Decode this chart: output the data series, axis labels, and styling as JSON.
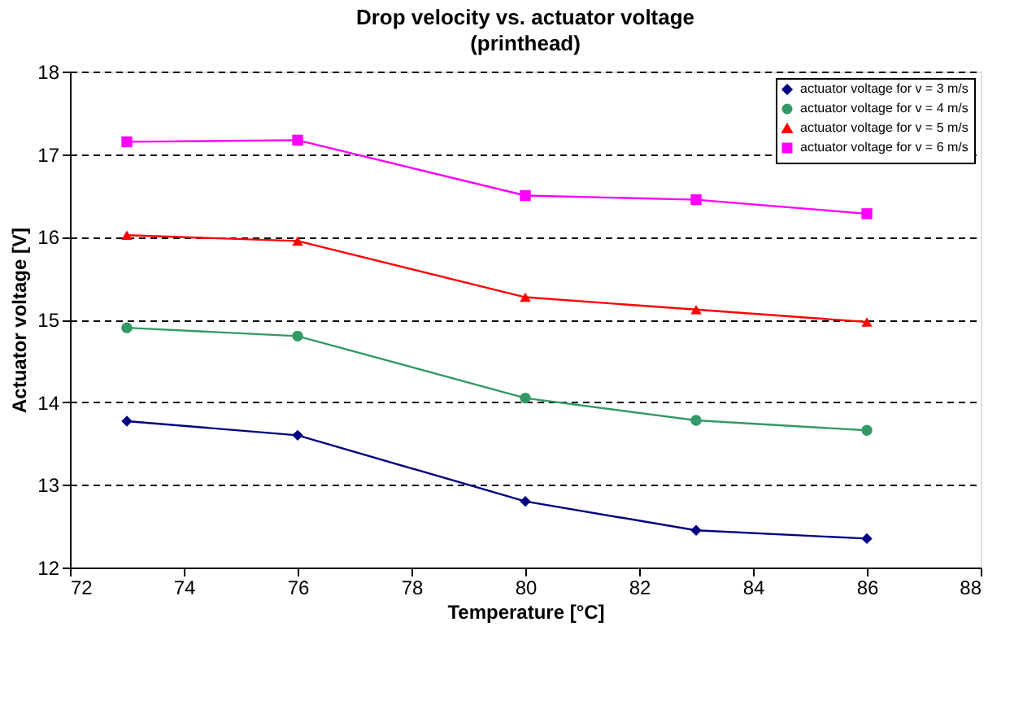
{
  "chart_data": {
    "type": "line",
    "title": "Drop velocity vs. actuator voltage",
    "subtitle": "(printhead)",
    "xlabel": "Temperature [°C]",
    "ylabel": "Actuator voltage [V]",
    "x": [
      73,
      76,
      80,
      83,
      86
    ],
    "series": [
      {
        "name": "actuator voltage for v = 3 m/s",
        "color": "#000080",
        "marker": "diamond",
        "values": [
          13.77,
          13.6,
          12.8,
          12.45,
          12.35
        ]
      },
      {
        "name": "actuator voltage for v = 4 m/s",
        "color": "#339966",
        "marker": "circle",
        "values": [
          14.9,
          14.8,
          14.05,
          13.78,
          13.66
        ]
      },
      {
        "name": "actuator voltage for v = 5 m/s",
        "color": "#ff0000",
        "marker": "triangle",
        "values": [
          16.02,
          15.95,
          15.27,
          15.12,
          14.97
        ]
      },
      {
        "name": "actuator voltage for v = 6 m/s",
        "color": "#ff00ff",
        "marker": "square",
        "values": [
          17.15,
          17.17,
          16.5,
          16.45,
          16.28
        ]
      }
    ],
    "xlim": [
      72,
      88
    ],
    "xticks": [
      72,
      74,
      76,
      78,
      80,
      82,
      84,
      86,
      88
    ],
    "ylim": [
      12,
      18
    ],
    "yticks": [
      12,
      13,
      14,
      15,
      16,
      17,
      18
    ],
    "grid": "y",
    "legend": "top right",
    "line_style": "solid"
  }
}
